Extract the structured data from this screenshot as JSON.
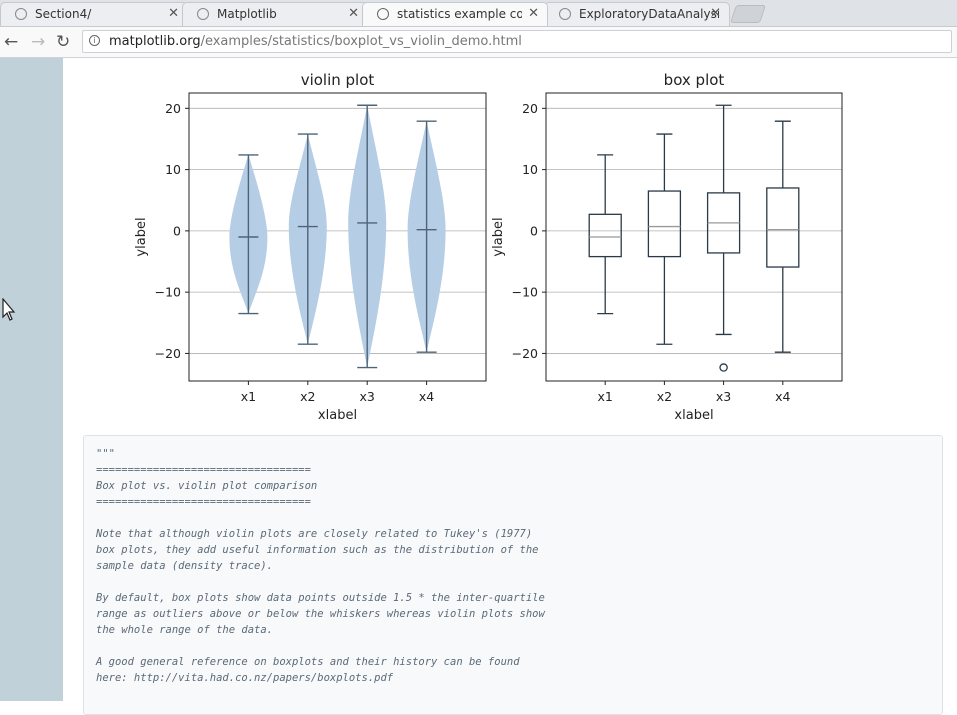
{
  "tabs": [
    {
      "label": "Section4/",
      "active": false
    },
    {
      "label": "Matplotlib",
      "active": false
    },
    {
      "label": "statistics example code: b",
      "active": true
    },
    {
      "label": "ExploratoryDataAnalysis",
      "active": false
    }
  ],
  "address": {
    "domain": "matplotlib.org",
    "path": "/examples/statistics/boxplot_vs_violin_demo.html"
  },
  "colors": {
    "violin_fill": "#b6cde6",
    "violin_lines": "#4d6477",
    "box_lines": "#2a3a48",
    "sidebar": "#c1d1d9"
  },
  "chart_data": [
    {
      "type": "violin",
      "title": "violin plot",
      "xlabel": "xlabel",
      "ylabel": "ylabel",
      "categories": [
        "x1",
        "x2",
        "x3",
        "x4"
      ],
      "ylim": [
        -24.5,
        22.5
      ],
      "yticks": [
        20,
        10,
        0,
        -10,
        -20
      ],
      "ytick_labels": [
        "20",
        "10",
        "0",
        "−10",
        "−20"
      ],
      "grid": "y",
      "series": [
        {
          "min": -13.5,
          "max": 12.4,
          "median": -1.0
        },
        {
          "min": -18.5,
          "max": 15.8,
          "median": 0.7
        },
        {
          "min": -22.3,
          "max": 20.5,
          "median": 1.3
        },
        {
          "min": -19.8,
          "max": 17.9,
          "median": 0.2
        }
      ]
    },
    {
      "type": "box",
      "title": "box plot",
      "xlabel": "xlabel",
      "ylabel": "ylabel",
      "categories": [
        "x1",
        "x2",
        "x3",
        "x4"
      ],
      "ylim": [
        -24.5,
        22.5
      ],
      "yticks": [
        20,
        10,
        0,
        -10,
        -20
      ],
      "ytick_labels": [
        "20",
        "10",
        "0",
        "−10",
        "−20"
      ],
      "grid": "y",
      "series": [
        {
          "whisker_low": -13.5,
          "q1": -4.2,
          "median": -1.0,
          "q3": 2.7,
          "whisker_high": 12.4,
          "outliers": []
        },
        {
          "whisker_low": -18.5,
          "q1": -4.2,
          "median": 0.7,
          "q3": 6.5,
          "whisker_high": 15.8,
          "outliers": []
        },
        {
          "whisker_low": -16.9,
          "q1": -3.6,
          "median": 1.3,
          "q3": 6.2,
          "whisker_high": 20.5,
          "outliers": [
            -22.3
          ]
        },
        {
          "whisker_low": -19.8,
          "q1": -5.9,
          "median": 0.2,
          "q3": 7.0,
          "whisker_high": 17.9,
          "outliers": []
        }
      ]
    }
  ],
  "code": {
    "lines": [
      "\"\"\"",
      "==================================",
      "Box plot vs. violin plot comparison",
      "==================================",
      "",
      "Note that although violin plots are closely related to Tukey's (1977)",
      "box plots, they add useful information such as the distribution of the",
      "sample data (density trace).",
      "",
      "By default, box plots show data points outside 1.5 * the inter-quartile",
      "range as outliers above or below the whiskers whereas violin plots show",
      "the whole range of the data.",
      "",
      "A good general reference on boxplots and their history can be found",
      "here: http://vita.had.co.nz/papers/boxplots.pdf"
    ]
  }
}
